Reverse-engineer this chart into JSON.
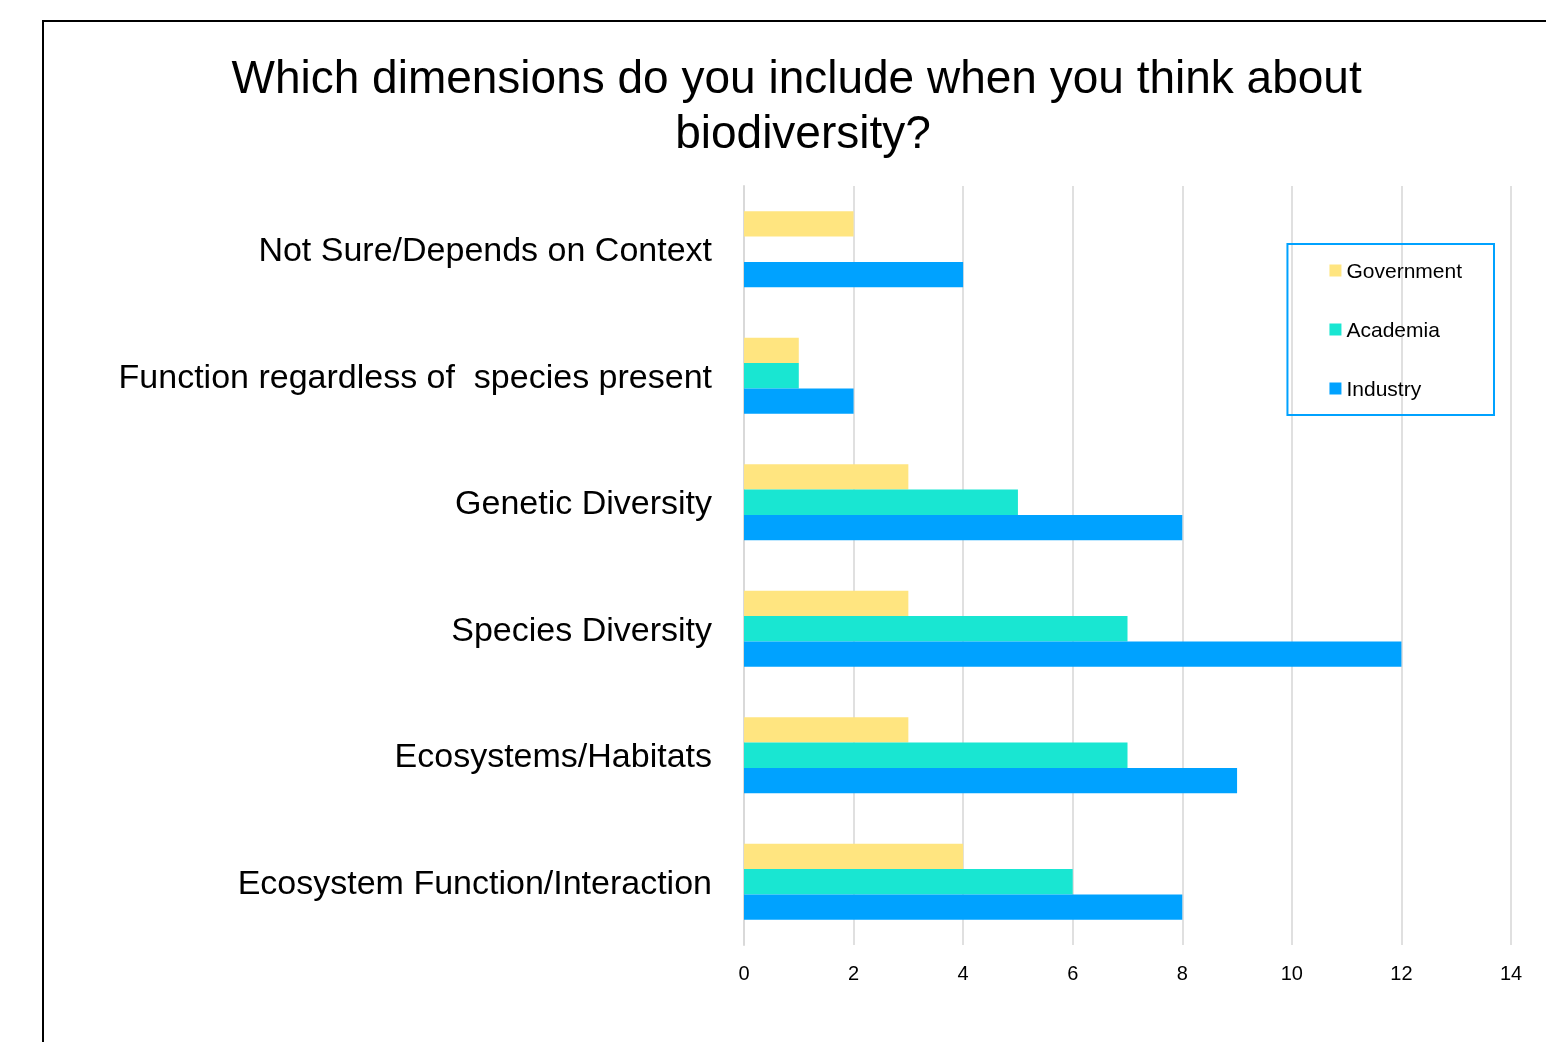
{
  "chart_data": {
    "type": "bar",
    "orientation": "horizontal",
    "title": "Which dimensions do you include when you think about biodiversity?",
    "categories": [
      "Not Sure/Depends on Context",
      "Function regardless of  species present",
      "Genetic Diversity",
      "Species Diversity",
      "Ecosystems/Habitats",
      "Ecosystem Function/Interaction"
    ],
    "series": [
      {
        "name": "Government",
        "color": "#ffe580",
        "values": [
          2,
          1,
          3,
          3,
          3,
          4
        ]
      },
      {
        "name": "Academia",
        "color": "#19e6d2",
        "values": [
          0,
          1,
          5,
          7,
          7,
          6
        ]
      },
      {
        "name": "Industry",
        "color": "#00a2ff",
        "values": [
          4,
          2,
          8,
          12,
          9,
          8
        ]
      }
    ],
    "xlim": [
      0,
      14
    ],
    "xticks": [
      0,
      2,
      4,
      6,
      8,
      10,
      12,
      14
    ],
    "grid": "x",
    "legend": "top right"
  }
}
